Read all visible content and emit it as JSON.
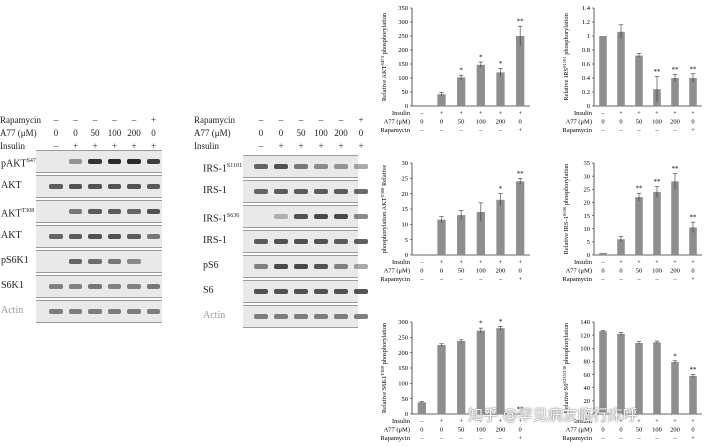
{
  "western_left": {
    "condition_rows": [
      {
        "label": "Rapamycin",
        "values": [
          "–",
          "–",
          "–",
          "–",
          "–",
          "+"
        ]
      },
      {
        "label": "A77 (μM)",
        "values": [
          "0",
          "0",
          "50",
          "100",
          "200",
          "0"
        ]
      },
      {
        "label": "Insulin",
        "values": [
          "–",
          "+",
          "+",
          "+",
          "+",
          "+"
        ]
      }
    ],
    "blots": [
      {
        "label": "pAKT",
        "sup": "S473",
        "intensity": [
          0.0,
          0.45,
          0.95,
          1.0,
          1.0,
          0.9
        ]
      },
      {
        "label": "AKT",
        "sup": "",
        "intensity": [
          0.75,
          0.8,
          0.8,
          0.8,
          0.8,
          0.75
        ]
      },
      {
        "label": "AKT",
        "sup": "T308",
        "intensity": [
          0.0,
          0.6,
          0.75,
          0.75,
          0.7,
          0.8
        ]
      },
      {
        "label": "AKT",
        "sup": "",
        "intensity": [
          0.7,
          0.75,
          0.8,
          0.8,
          0.75,
          0.6
        ]
      },
      {
        "label": "pS6K1",
        "sup": "",
        "intensity": [
          0.0,
          0.7,
          0.65,
          0.6,
          0.5,
          0.0
        ]
      },
      {
        "label": "S6K1",
        "sup": "",
        "intensity": [
          0.55,
          0.55,
          0.6,
          0.55,
          0.55,
          0.6
        ]
      },
      {
        "label": "Actin",
        "sup": "",
        "intensity": [
          0.85,
          0.85,
          0.85,
          0.85,
          0.85,
          0.85
        ],
        "faded": true
      }
    ]
  },
  "western_right": {
    "condition_rows": [
      {
        "label": "Rapamycin",
        "values": [
          "–",
          "–",
          "–",
          "–",
          "–",
          "+"
        ]
      },
      {
        "label": "A77 (μM)",
        "values": [
          "0",
          "0",
          "50",
          "100",
          "200",
          "0"
        ]
      },
      {
        "label": "Insulin",
        "values": [
          "–",
          "+",
          "+",
          "+",
          "+",
          "+"
        ]
      }
    ],
    "blots": [
      {
        "label": "IRS-1",
        "sup": "S1101",
        "intensity": [
          0.7,
          0.8,
          0.6,
          0.5,
          0.45,
          0.4
        ]
      },
      {
        "label": "IRS-1",
        "sup": "",
        "intensity": [
          0.7,
          0.75,
          0.75,
          0.75,
          0.75,
          0.7
        ]
      },
      {
        "label": "IRS-1",
        "sup": "S636",
        "intensity": [
          0.0,
          0.3,
          0.8,
          0.85,
          0.85,
          0.55
        ]
      },
      {
        "label": "IRS-1",
        "sup": "",
        "intensity": [
          0.75,
          0.8,
          0.8,
          0.8,
          0.75,
          0.75
        ]
      },
      {
        "label": "pS6",
        "sup": "",
        "intensity": [
          0.55,
          0.85,
          0.85,
          0.8,
          0.55,
          0.4
        ]
      },
      {
        "label": "S6",
        "sup": "",
        "intensity": [
          0.8,
          0.8,
          0.8,
          0.8,
          0.8,
          0.8
        ]
      },
      {
        "label": "Actin",
        "sup": "",
        "intensity": [
          0.85,
          0.85,
          0.85,
          0.85,
          0.85,
          0.85
        ],
        "faded": true
      }
    ]
  },
  "chart_data": [
    {
      "type": "bar",
      "ylabel": "Relative AKT",
      "ylabel_sup": "S473",
      "ylabel_suffix": " phosphorylation",
      "ylim": [
        0,
        350
      ],
      "yticks": [
        "0",
        "50",
        "100",
        "150",
        "200",
        "250",
        "300",
        "350"
      ],
      "values": [
        0,
        42,
        102,
        147,
        120,
        250
      ],
      "errors": [
        0,
        6,
        8,
        10,
        14,
        35
      ],
      "significance": [
        "",
        "",
        "*",
        "*",
        "*",
        "**"
      ],
      "conditions": {
        "Insulin": [
          "–",
          "+",
          "+",
          "+",
          "+",
          "+"
        ],
        "A77 (μM)": [
          "0",
          "0",
          "50",
          "100",
          "200",
          "0"
        ],
        "Rapamycin": [
          "–",
          "–",
          "–",
          "–",
          "–",
          "+"
        ]
      }
    },
    {
      "type": "bar",
      "ylabel": "Relative IRS",
      "ylabel_sup": "S1101",
      "ylabel_suffix": " phosphorylation",
      "ylim": [
        0,
        1.4
      ],
      "yticks": [
        "0",
        "0.2",
        "0.4",
        "0.6",
        "0.8",
        "1",
        "1.2",
        "1.4"
      ],
      "values": [
        1.0,
        1.06,
        0.72,
        0.24,
        0.4,
        0.4
      ],
      "errors": [
        0,
        0.1,
        0.03,
        0.18,
        0.05,
        0.06
      ],
      "significance": [
        "",
        "",
        "",
        "**",
        "**",
        "**"
      ],
      "conditions": {
        "Insulin": [
          "–",
          "+",
          "+",
          "+",
          "+",
          "+"
        ],
        "A77 (μM)": [
          "0",
          "0",
          "50",
          "100",
          "200",
          "0"
        ],
        "Rapamycin": [
          "–",
          "–",
          "–",
          "–",
          "–",
          "+"
        ]
      }
    },
    {
      "type": "bar",
      "ylabel": "phosphorylation AKT",
      "ylabel_sup": "T308",
      "ylabel_suffix": " Relative",
      "ylim": [
        0,
        30
      ],
      "yticks": [
        "0",
        "5",
        "10",
        "15",
        "20",
        "25",
        "30"
      ],
      "values": [
        0,
        11.5,
        13,
        14,
        18,
        24
      ],
      "errors": [
        0,
        1,
        1.5,
        3,
        2,
        1
      ],
      "significance": [
        "",
        "",
        "",
        "",
        "*",
        "**"
      ],
      "conditions": {
        "Insulin": [
          "–",
          "+",
          "+",
          "+",
          "+",
          "+"
        ],
        "A77 (μM)": [
          "0",
          "0",
          "50",
          "100",
          "200",
          "0"
        ],
        "Rapamycin": [
          "–",
          "–",
          "–",
          "–",
          "–",
          "+"
        ]
      }
    },
    {
      "type": "bar",
      "ylabel": "Relative IRS-1",
      "ylabel_sup": "S636",
      "ylabel_suffix": " phosphorylation",
      "ylim": [
        0,
        35
      ],
      "yticks": [
        "0",
        "5",
        "10",
        "15",
        "20",
        "25",
        "30",
        "35"
      ],
      "values": [
        0.8,
        6,
        22,
        24,
        28,
        10.5
      ],
      "errors": [
        0,
        1,
        1.5,
        2,
        3,
        2
      ],
      "significance": [
        "",
        "",
        "**",
        "**",
        "**",
        "**"
      ],
      "conditions": {
        "Insulin": [
          "–",
          "+",
          "+",
          "+",
          "+",
          "+"
        ],
        "A77 (μM)": [
          "0",
          "0",
          "50",
          "100",
          "200",
          "0"
        ],
        "Rapamycin": [
          "–",
          "–",
          "–",
          "–",
          "–",
          "+"
        ]
      }
    },
    {
      "type": "bar",
      "ylabel": "Relative S6K1",
      "ylabel_sup": "T389",
      "ylabel_suffix": " phosphorylation",
      "ylim": [
        0,
        300
      ],
      "yticks": [
        "0",
        "50",
        "100",
        "150",
        "200",
        "250",
        "300"
      ],
      "values": [
        38,
        225,
        238,
        272,
        280,
        0
      ],
      "errors": [
        2,
        4,
        4,
        8,
        6,
        0
      ],
      "significance": [
        "",
        "",
        "",
        "*",
        "*",
        "**"
      ],
      "conditions": {
        "Insulin": [
          "–",
          "+",
          "+",
          "+",
          "+",
          "+"
        ],
        "A77 (μM)": [
          "0",
          "0",
          "50",
          "100",
          "200",
          "0"
        ],
        "Rapamycin": [
          "–",
          "–",
          "–",
          "–",
          "–",
          "+"
        ]
      }
    },
    {
      "type": "bar",
      "ylabel": "Relative S6",
      "ylabel_sup": "S235/236",
      "ylabel_suffix": " phosphorylation",
      "ylim": [
        0,
        140
      ],
      "yticks": [
        "0",
        "20",
        "40",
        "60",
        "80",
        "100",
        "120",
        "140"
      ],
      "values": [
        126,
        122,
        108,
        109,
        79,
        58
      ],
      "errors": [
        1,
        2,
        2,
        2,
        2,
        2
      ],
      "significance": [
        "",
        "",
        "",
        "",
        "*",
        "**"
      ],
      "conditions": {
        "Insulin": [
          "–",
          "+",
          "+",
          "+",
          "+",
          "+"
        ],
        "A77 (μM)": [
          "0",
          "0",
          "50",
          "100",
          "200",
          "0"
        ],
        "Rapamycin": [
          "–",
          "–",
          "–",
          "–",
          "–",
          "+"
        ]
      }
    }
  ],
  "colors": {
    "bar": "#8e8e8e",
    "band": "#2b2b2b",
    "membrane": "#e9e9e9",
    "axis": "#333333"
  },
  "watermark": "知乎 @罕见病友临行床呼"
}
